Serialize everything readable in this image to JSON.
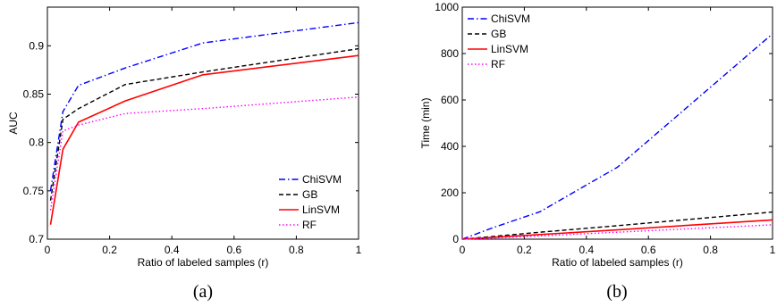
{
  "chart_data": [
    {
      "type": "line",
      "panel_label": "(a)",
      "xlabel": "Ratio of labeled samples (r)",
      "ylabel": "AUC",
      "xlim": [
        0,
        1
      ],
      "ylim": [
        0.7,
        0.94
      ],
      "xticks": [
        0,
        0.2,
        0.4,
        0.6,
        0.8,
        1
      ],
      "xtick_labels": [
        "0",
        "0.2",
        "0.4",
        "0.6",
        "0.8",
        "1"
      ],
      "yticks": [
        0.7,
        0.75,
        0.8,
        0.85,
        0.9
      ],
      "ytick_labels": [
        "0.7",
        "0.75",
        "0.8",
        "0.85",
        "0.9"
      ],
      "legend_position": "bottom-right",
      "series": [
        {
          "name": "ChiSVM",
          "color": "#0000ff",
          "dash": "dashdot",
          "x": [
            0.01,
            0.05,
            0.1,
            0.25,
            0.5,
            1.0
          ],
          "y": [
            0.75,
            0.832,
            0.859,
            0.877,
            0.903,
            0.924
          ]
        },
        {
          "name": "GB",
          "color": "#000000",
          "dash": "dashed",
          "x": [
            0.01,
            0.05,
            0.1,
            0.25,
            0.5,
            1.0
          ],
          "y": [
            0.74,
            0.824,
            0.835,
            0.86,
            0.873,
            0.897
          ]
        },
        {
          "name": "LinSVM",
          "color": "#ff0000",
          "dash": "solid",
          "x": [
            0.01,
            0.05,
            0.1,
            0.25,
            0.5,
            1.0
          ],
          "y": [
            0.715,
            0.793,
            0.821,
            0.843,
            0.87,
            0.89
          ]
        },
        {
          "name": "RF",
          "color": "#ff00ff",
          "dash": "dotted",
          "x": [
            0.01,
            0.05,
            0.1,
            0.25,
            0.5,
            1.0
          ],
          "y": [
            0.73,
            0.812,
            0.818,
            0.83,
            0.835,
            0.847
          ]
        }
      ]
    },
    {
      "type": "line",
      "panel_label": "(b)",
      "xlabel": "Ratio of labeled samples (r)",
      "ylabel": "Time (min)",
      "xlim": [
        0,
        1
      ],
      "ylim": [
        0,
        1000
      ],
      "xticks": [
        0,
        0.2,
        0.4,
        0.6,
        0.8,
        1
      ],
      "xtick_labels": [
        "0",
        "0.2",
        "0.4",
        "0.6",
        "0.8",
        "1"
      ],
      "yticks": [
        0,
        200,
        400,
        600,
        800,
        1000
      ],
      "ytick_labels": [
        "0",
        "200",
        "400",
        "600",
        "800",
        "1000"
      ],
      "legend_position": "top-left",
      "series": [
        {
          "name": "ChiSVM",
          "color": "#0000ff",
          "dash": "dashdot",
          "x": [
            0.0,
            0.1,
            0.25,
            0.5,
            1.0
          ],
          "y": [
            0,
            50,
            118,
            310,
            885
          ]
        },
        {
          "name": "GB",
          "color": "#000000",
          "dash": "dashed",
          "x": [
            0.0,
            0.1,
            0.25,
            0.5,
            1.0
          ],
          "y": [
            0,
            12,
            30,
            58,
            117
          ]
        },
        {
          "name": "LinSVM",
          "color": "#ff0000",
          "dash": "solid",
          "x": [
            0.0,
            0.1,
            0.25,
            0.5,
            1.0
          ],
          "y": [
            0,
            8,
            20,
            40,
            83
          ]
        },
        {
          "name": "RF",
          "color": "#ff00ff",
          "dash": "dotted",
          "x": [
            0.0,
            0.1,
            0.25,
            0.5,
            1.0
          ],
          "y": [
            0,
            5,
            14,
            30,
            62
          ]
        }
      ]
    }
  ]
}
